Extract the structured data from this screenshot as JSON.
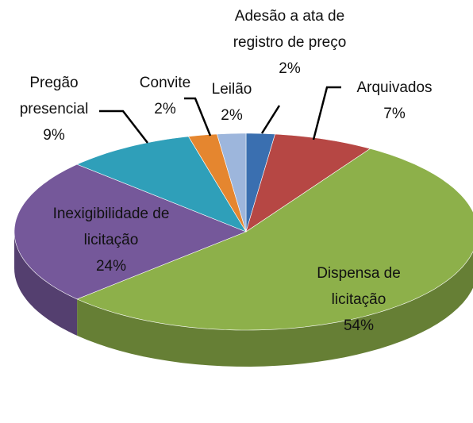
{
  "chart_data": {
    "type": "pie3d",
    "categories": [
      "Adesão a ata de registro de preço",
      "Arquivados",
      "Dispensa de licitação",
      "Inexigibilidade de licitação",
      "Pregão presencial",
      "Convite",
      "Leilão"
    ],
    "values": [
      2,
      7,
      54,
      24,
      9,
      2,
      2
    ],
    "value_labels": [
      "2%",
      "7%",
      "54%",
      "24%",
      "9%",
      "2%",
      "2%"
    ],
    "colors": [
      "#3a6fb0",
      "#b64744",
      "#8db04a",
      "#75589a",
      "#2f9fb9",
      "#e5862f",
      "#9db6dc"
    ]
  }
}
